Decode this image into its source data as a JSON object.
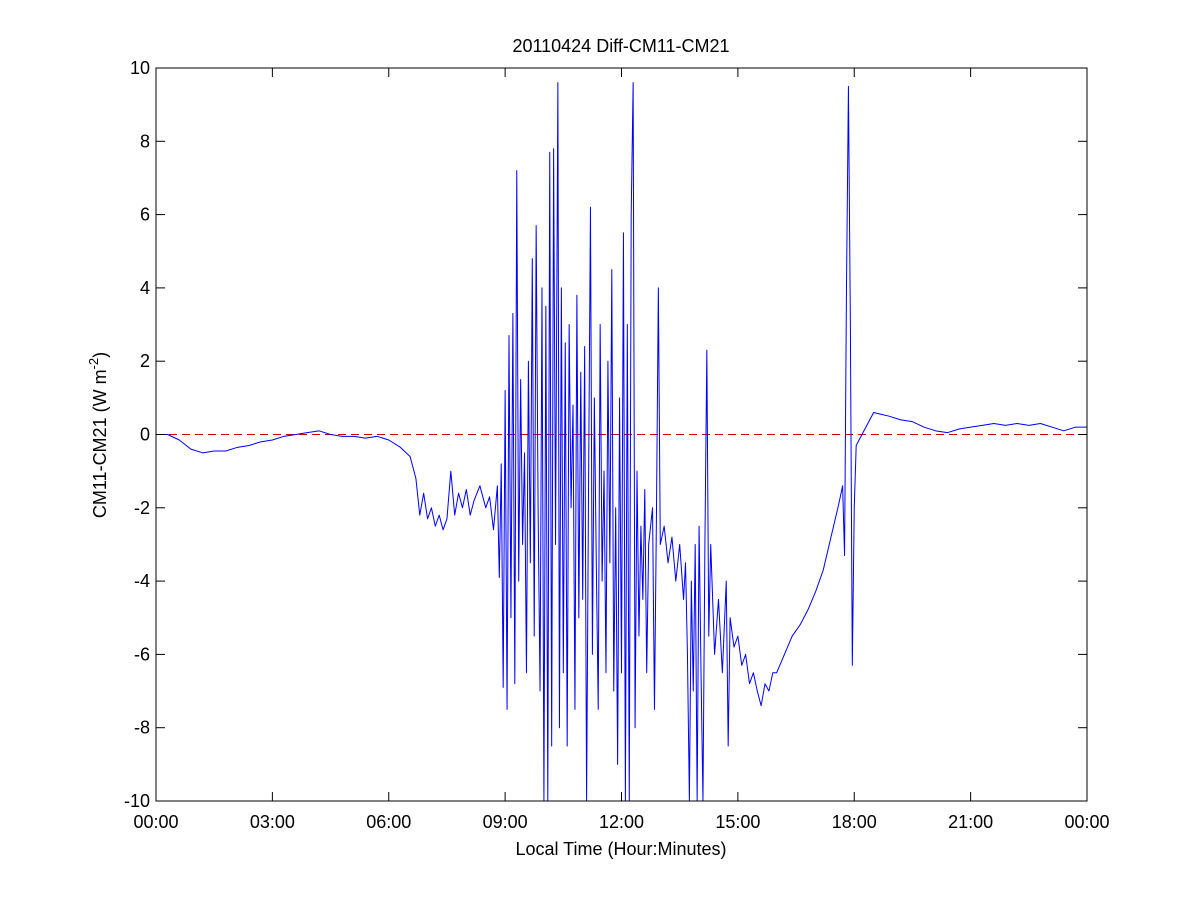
{
  "chart_data": {
    "type": "line",
    "title": "20110424 Diff-CM11-CM21",
    "xlabel": "Local Time (Hour:Minutes)",
    "ylabel": [
      "CM11-CM21 (W m",
      "-2",
      ")"
    ],
    "xlim": [
      0,
      24
    ],
    "ylim": [
      -10,
      10
    ],
    "xticks": [
      {
        "value": 0,
        "label": "00:00"
      },
      {
        "value": 3,
        "label": "03:00"
      },
      {
        "value": 6,
        "label": "06:00"
      },
      {
        "value": 9,
        "label": "09:00"
      },
      {
        "value": 12,
        "label": "12:00"
      },
      {
        "value": 15,
        "label": "15:00"
      },
      {
        "value": 18,
        "label": "18:00"
      },
      {
        "value": 21,
        "label": "21:00"
      },
      {
        "value": 24,
        "label": "00:00"
      }
    ],
    "yticks": [
      -10,
      -8,
      -6,
      -4,
      -2,
      0,
      2,
      4,
      6,
      8,
      10
    ],
    "reference_line": {
      "value": 0,
      "color": "#d00000"
    },
    "x": [
      0,
      0.3,
      0.6,
      0.9,
      1.2,
      1.5,
      1.8,
      2.1,
      2.4,
      2.7,
      3.0,
      3.3,
      3.6,
      3.9,
      4.2,
      4.5,
      4.8,
      5.1,
      5.4,
      5.7,
      6.0,
      6.3,
      6.55,
      6.7,
      6.8,
      6.9,
      7.0,
      7.1,
      7.2,
      7.3,
      7.4,
      7.5,
      7.6,
      7.7,
      7.8,
      7.9,
      8.0,
      8.1,
      8.2,
      8.35,
      8.5,
      8.6,
      8.7,
      8.8,
      8.85,
      8.9,
      8.95,
      9.0,
      9.05,
      9.1,
      9.15,
      9.2,
      9.25,
      9.3,
      9.35,
      9.4,
      9.45,
      9.5,
      9.55,
      9.6,
      9.65,
      9.7,
      9.75,
      9.8,
      9.85,
      9.9,
      9.95,
      10.0,
      10.05,
      10.1,
      10.15,
      10.2,
      10.25,
      10.3,
      10.36,
      10.4,
      10.45,
      10.5,
      10.55,
      10.6,
      10.65,
      10.7,
      10.75,
      10.8,
      10.85,
      10.9,
      10.95,
      11.0,
      11.05,
      11.1,
      11.15,
      11.2,
      11.25,
      11.3,
      11.35,
      11.4,
      11.45,
      11.5,
      11.55,
      11.6,
      11.65,
      11.7,
      11.75,
      11.8,
      11.85,
      11.9,
      11.95,
      12.0,
      12.05,
      12.1,
      12.15,
      12.2,
      12.25,
      12.3,
      12.35,
      12.4,
      12.45,
      12.5,
      12.55,
      12.6,
      12.65,
      12.7,
      12.8,
      12.85,
      12.9,
      12.95,
      13.0,
      13.1,
      13.2,
      13.3,
      13.4,
      13.5,
      13.6,
      13.65,
      13.7,
      13.75,
      13.8,
      13.85,
      13.9,
      13.95,
      14.0,
      14.05,
      14.1,
      14.15,
      14.2,
      14.25,
      14.3,
      14.4,
      14.5,
      14.6,
      14.7,
      14.75,
      14.8,
      14.9,
      15.0,
      15.1,
      15.2,
      15.3,
      15.4,
      15.5,
      15.6,
      15.7,
      15.8,
      15.9,
      16.0,
      16.2,
      16.4,
      16.6,
      16.8,
      17.0,
      17.2,
      17.4,
      17.6,
      17.7,
      17.75,
      17.8,
      17.85,
      17.9,
      17.95,
      18.0,
      18.05,
      18.15,
      18.3,
      18.5,
      18.7,
      18.9,
      19.2,
      19.5,
      19.8,
      20.1,
      20.4,
      20.7,
      21.0,
      21.3,
      21.6,
      21.9,
      22.2,
      22.5,
      22.8,
      23.1,
      23.4,
      23.7,
      24.0
    ],
    "series": [
      {
        "color": "#0000ff",
        "values": [
          0,
          0,
          -0.15,
          -0.4,
          -0.5,
          -0.45,
          -0.45,
          -0.35,
          -0.3,
          -0.2,
          -0.15,
          -0.05,
          0,
          0.05,
          0.1,
          0,
          -0.05,
          -0.05,
          -0.1,
          -0.05,
          -0.15,
          -0.35,
          -0.6,
          -1.2,
          -2.2,
          -1.6,
          -2.3,
          -2.0,
          -2.5,
          -2.2,
          -2.6,
          -2.3,
          -1.0,
          -2.2,
          -1.6,
          -2.0,
          -1.5,
          -2.2,
          -1.8,
          -1.4,
          -2.0,
          -1.7,
          -2.6,
          -1.4,
          -3.9,
          -0.8,
          -6.9,
          1.2,
          -7.5,
          2.7,
          -5.0,
          3.3,
          -6.8,
          7.2,
          -4.0,
          1.5,
          -3.0,
          -0.5,
          -6.5,
          2.0,
          -3.5,
          4.8,
          -5.5,
          5.7,
          -2.0,
          -7.0,
          4.0,
          -10,
          3.5,
          -10,
          7.7,
          -8.5,
          7.8,
          -3.0,
          9.6,
          -8.0,
          4.0,
          -6.5,
          2.5,
          -8.5,
          3.0,
          -2.0,
          0.8,
          -7.5,
          3.8,
          -5.0,
          1.7,
          -4.5,
          2.4,
          -10,
          -1.5,
          6.2,
          -6.0,
          1.0,
          -3.5,
          -7.5,
          3.0,
          -4.0,
          -1.0,
          -6.5,
          2.0,
          -3.5,
          4.5,
          -7.0,
          -2.0,
          -9.0,
          1.0,
          -6.5,
          5.5,
          -10,
          3.0,
          -10,
          6.0,
          9.6,
          -8.0,
          -1.0,
          -5.5,
          -2.5,
          -4.5,
          -1.5,
          -6.5,
          -3.0,
          -2.0,
          -7.5,
          -2.3,
          4.0,
          -3.0,
          -2.5,
          -3.5,
          -2.8,
          -4.0,
          -3.0,
          -4.5,
          -3.5,
          -6.0,
          -10,
          -4.0,
          -7.0,
          -3.0,
          -10,
          -2.5,
          -6.5,
          -10,
          -3.0,
          2.3,
          -5.5,
          -3.0,
          -6.0,
          -4.5,
          -6.5,
          -4.0,
          -8.5,
          -5.0,
          -5.8,
          -5.5,
          -6.3,
          -6.0,
          -6.8,
          -6.5,
          -7.0,
          -7.4,
          -6.8,
          -7.0,
          -6.5,
          -6.5,
          -6.0,
          -5.5,
          -5.2,
          -4.8,
          -4.3,
          -3.7,
          -2.8,
          -1.9,
          -1.4,
          -3.3,
          4.0,
          9.5,
          3.0,
          -6.3,
          -2.0,
          -0.3,
          -0.1,
          0.2,
          0.6,
          0.55,
          0.5,
          0.4,
          0.35,
          0.2,
          0.1,
          0.05,
          0.15,
          0.2,
          0.25,
          0.3,
          0.25,
          0.3,
          0.25,
          0.3,
          0.2,
          0.1,
          0.2,
          0.2
        ]
      }
    ]
  }
}
